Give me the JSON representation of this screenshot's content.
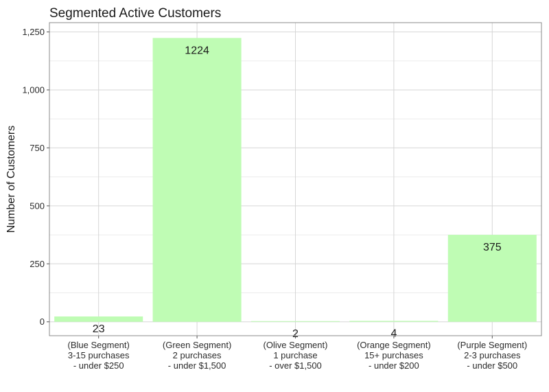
{
  "chart_data": {
    "type": "bar",
    "title": "Segmented Active Customers",
    "xlabel": "",
    "ylabel": "Number of Customers",
    "categories": [
      [
        "(Blue Segment)",
        "3-15 purchases",
        "- under $250"
      ],
      [
        "(Green Segment)",
        "2 purchases",
        "- under $1,500"
      ],
      [
        "(Olive Segment)",
        "1 purchase",
        "- over $1,500"
      ],
      [
        "(Orange Segment)",
        "15+ purchases",
        "- under $200"
      ],
      [
        "(Purple Segment)",
        "2-3 purchases",
        "- under $500"
      ]
    ],
    "values": [
      23,
      1224,
      2,
      4,
      375
    ],
    "data_labels": [
      "23",
      "1224",
      "2",
      "4",
      "375"
    ],
    "ylim": [
      -60,
      1290
    ],
    "yticks": [
      0,
      250,
      500,
      750,
      1000,
      1250
    ],
    "ytick_labels": [
      "0",
      "250",
      "500",
      "750",
      "1,000",
      "1,250"
    ],
    "bar_color": "#bffcb4",
    "grid": true,
    "legend": "none"
  }
}
